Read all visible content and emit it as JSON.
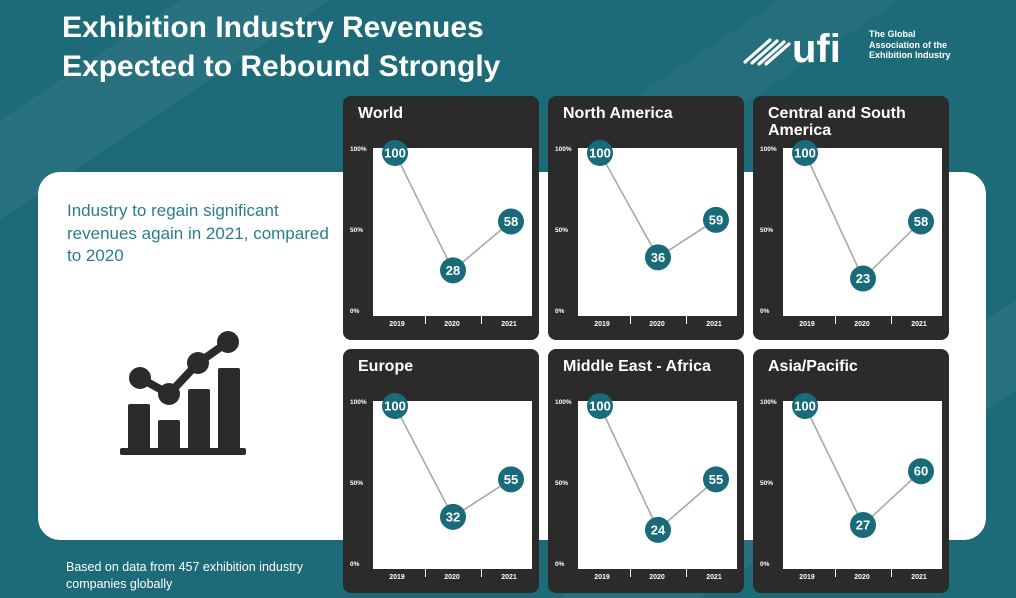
{
  "title": "Exhibition Industry Revenues\nExpected to Rebound Strongly",
  "logo": {
    "mark": "ufi",
    "tagline": "The Global\nAssociation of the\nExhibition Industry"
  },
  "intro": "Industry to regain significant revenues again in 2021, compared to 2020",
  "footnote": "Based on data from 457 exhibition industry companies globally",
  "colors": {
    "background": "#1d6a78",
    "marker": "#1a6b79",
    "panel": "#2b2b2b",
    "line": "#a8a8a8",
    "intro_text": "#2a7e8b"
  },
  "icons": {
    "growth": "bar-chart-growth-icon",
    "logo": "ufi-stripes-icon"
  },
  "chart_data": [
    {
      "type": "line",
      "title": "World",
      "x": [
        "2019",
        "2020",
        "2021"
      ],
      "values": [
        100,
        28,
        58
      ],
      "yticks": [
        "100%",
        "50%",
        "0%"
      ],
      "ylim": [
        0,
        100
      ]
    },
    {
      "type": "line",
      "title": "North America",
      "x": [
        "2019",
        "2020",
        "2021"
      ],
      "values": [
        100,
        36,
        59
      ],
      "yticks": [
        "100%",
        "50%",
        "0%"
      ],
      "ylim": [
        0,
        100
      ]
    },
    {
      "type": "line",
      "title": "Central and South America",
      "x": [
        "2019",
        "2020",
        "2021"
      ],
      "values": [
        100,
        23,
        58
      ],
      "yticks": [
        "100%",
        "50%",
        "0%"
      ],
      "ylim": [
        0,
        100
      ]
    },
    {
      "type": "line",
      "title": "Europe",
      "x": [
        "2019",
        "2020",
        "2021"
      ],
      "values": [
        100,
        32,
        55
      ],
      "yticks": [
        "100%",
        "50%",
        "0%"
      ],
      "ylim": [
        0,
        100
      ]
    },
    {
      "type": "line",
      "title": "Middle East - Africa",
      "x": [
        "2019",
        "2020",
        "2021"
      ],
      "values": [
        100,
        24,
        55
      ],
      "yticks": [
        "100%",
        "50%",
        "0%"
      ],
      "ylim": [
        0,
        100
      ]
    },
    {
      "type": "line",
      "title": "Asia/Pacific",
      "x": [
        "2019",
        "2020",
        "2021"
      ],
      "values": [
        100,
        27,
        60
      ],
      "yticks": [
        "100%",
        "50%",
        "0%"
      ],
      "ylim": [
        0,
        100
      ]
    }
  ]
}
